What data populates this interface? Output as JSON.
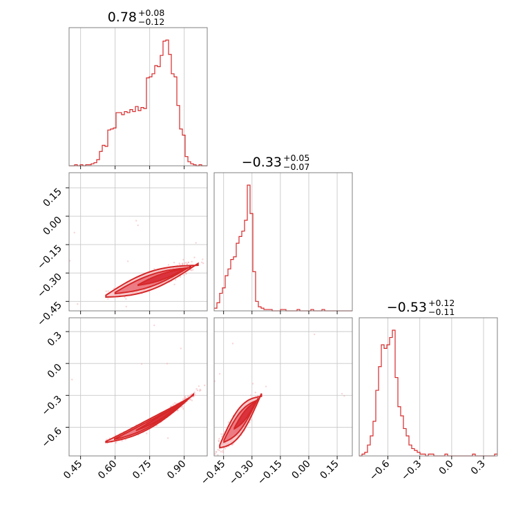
{
  "chart_data": {
    "type": "corner",
    "color": "#d62728",
    "parameters": [
      {
        "title": {
          "value": "0.78",
          "plus": "+0.08",
          "minus": "−0.12"
        },
        "range": [
          0.4,
          1.0
        ],
        "ticks": [
          0.45,
          0.6,
          0.75,
          0.9
        ],
        "tick_labels": [
          "0.45",
          "0.60",
          "0.75",
          "0.90"
        ]
      },
      {
        "title": {
          "value": "−0.33",
          "plus": "+0.05",
          "minus": "−0.07"
        },
        "range": [
          -0.5,
          0.23
        ],
        "ticks": [
          -0.45,
          -0.3,
          -0.15,
          0.0,
          0.15
        ],
        "tick_labels": [
          "−0.45",
          "−0.30",
          "−0.15",
          "0.00",
          "0.15"
        ]
      },
      {
        "title": {
          "value": "−0.53",
          "plus": "+0.12",
          "minus": "−0.11"
        },
        "range": [
          -0.87,
          0.43
        ],
        "ticks": [
          -0.6,
          -0.3,
          0.0,
          0.3
        ],
        "tick_labels": [
          "−0.6",
          "−0.3",
          "0.0",
          "0.3"
        ]
      }
    ],
    "histograms": [
      {
        "param": 0,
        "bin_start": 0.4,
        "bin_width": 0.012,
        "counts": [
          0,
          0,
          1,
          0,
          1,
          0,
          1,
          1,
          2,
          3,
          6,
          14,
          20,
          19,
          35,
          36,
          37,
          52,
          52,
          50,
          53,
          52,
          55,
          53,
          58,
          54,
          57,
          56,
          86,
          87,
          90,
          98,
          97,
          108,
          122,
          123,
          109,
          90,
          87,
          59,
          36,
          30,
          9,
          4,
          2,
          1,
          0,
          1,
          0,
          0
        ]
      },
      {
        "param": 1,
        "bin_start": -0.5,
        "bin_width": 0.0146,
        "counts": [
          2,
          6,
          13,
          17,
          26,
          31,
          38,
          40,
          50,
          55,
          59,
          67,
          93,
          72,
          29,
          7,
          3,
          2,
          1,
          1,
          1,
          0,
          0,
          0,
          1,
          1,
          0,
          0,
          0,
          0,
          1,
          0,
          0,
          0,
          0,
          1,
          0,
          0,
          0,
          1,
          0,
          0,
          0,
          0,
          0,
          0,
          0,
          0,
          0,
          0
        ]
      },
      {
        "param": 2,
        "bin_start": -0.87,
        "bin_width": 0.026,
        "counts": [
          0,
          1,
          2,
          6,
          11,
          19,
          36,
          49,
          61,
          59,
          61,
          65,
          69,
          43,
          27,
          22,
          15,
          11,
          6,
          4,
          3,
          2,
          1,
          1,
          0,
          1,
          1,
          0,
          0,
          0,
          0,
          1,
          0,
          0,
          0,
          0,
          0,
          0,
          0,
          0,
          0,
          1,
          0,
          0,
          0,
          0,
          0,
          0,
          0,
          1
        ]
      }
    ],
    "correlations": [
      {
        "x_param": 0,
        "y_param": 1,
        "trend": "positive",
        "center": [
          0.78,
          -0.33
        ]
      },
      {
        "x_param": 0,
        "y_param": 2,
        "trend": "positive",
        "center": [
          0.78,
          -0.53
        ]
      },
      {
        "x_param": 1,
        "y_param": 2,
        "trend": "positive",
        "center": [
          -0.33,
          -0.53
        ]
      }
    ],
    "grid": true
  }
}
